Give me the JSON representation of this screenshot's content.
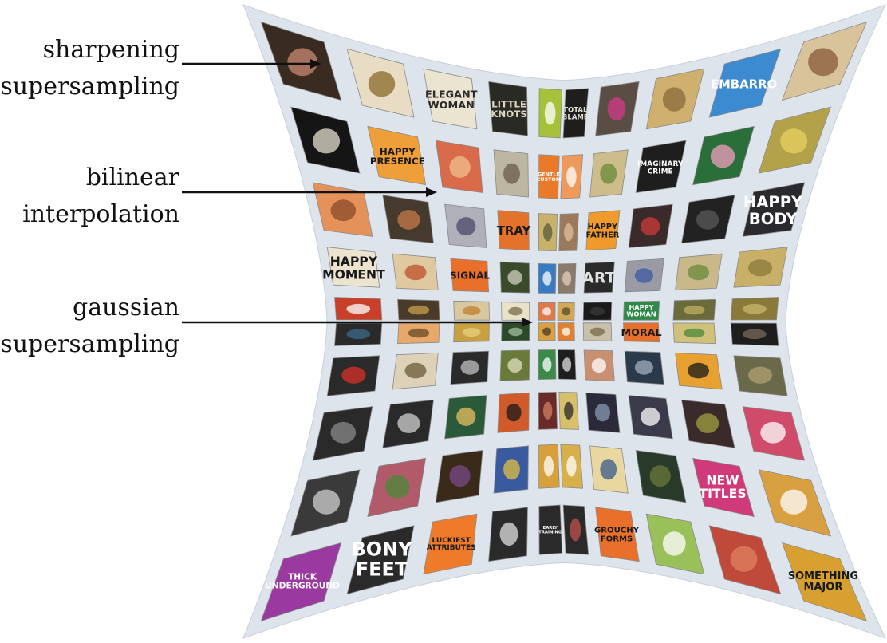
{
  "annotations": [
    {
      "line1": "sharpening",
      "line2": "supersampling"
    },
    {
      "line1": "bilinear",
      "line2": "interpolation"
    },
    {
      "line1": "gaussian",
      "line2": "supersampling"
    }
  ],
  "tiles": [
    {
      "text": "",
      "bg": "#3a2b20",
      "fg": "#c98a73"
    },
    {
      "text": "",
      "bg": "#e9dcc4",
      "fg": "#8a6a2c"
    },
    {
      "text": "ELEGANT WOMAN",
      "bg": "#ebe4d0",
      "fg": "#2a2a2a"
    },
    {
      "text": "LITTLE KNOTS",
      "bg": "#2a2a24",
      "fg": "#ded6c0"
    },
    {
      "text": "",
      "bg": "#a6c23a",
      "fg": "#ffffff"
    },
    {
      "text": "TOTAL BLAME",
      "bg": "#1e1e1c",
      "fg": "#e0e0d8"
    },
    {
      "text": "",
      "bg": "#5a4e44",
      "fg": "#d23a8a"
    },
    {
      "text": "",
      "bg": "#cfb06e",
      "fg": "#8a6a3a"
    },
    {
      "text": "EMBARRO",
      "bg": "#3c8ad0",
      "fg": "#ffffff"
    },
    {
      "text": "",
      "bg": "#d8c39a",
      "fg": "#8a5a3a"
    },
    {
      "text": "",
      "bg": "#151515",
      "fg": "#e6e0cc"
    },
    {
      "text": "HAPPY PRESENCE",
      "bg": "#ef9f3a",
      "fg": "#1a1a1a"
    },
    {
      "text": "",
      "bg": "#d96a4a",
      "fg": "#f0c090"
    },
    {
      "text": "",
      "bg": "#bdb6a2",
      "fg": "#6a5a4a"
    },
    {
      "text": "GENTLE CUSTOM",
      "bg": "#ea7a2a",
      "fg": "#ffffff"
    },
    {
      "text": "",
      "bg": "#ef9a5a",
      "fg": "#ffffff"
    },
    {
      "text": "",
      "bg": "#cdbd8a",
      "fg": "#6a8a3a"
    },
    {
      "text": "IMAGINARY CRIME",
      "bg": "#1e1e1e",
      "fg": "#ffffff"
    },
    {
      "text": "",
      "bg": "#2a6e3a",
      "fg": "#f0a0c0"
    },
    {
      "text": "",
      "bg": "#b4a24a",
      "fg": "#e8d060"
    },
    {
      "text": "",
      "bg": "#e4925a",
      "fg": "#8a4a2a"
    },
    {
      "text": "",
      "bg": "#463a2e",
      "fg": "#c87a4a"
    },
    {
      "text": "",
      "bg": "#b0b0ba",
      "fg": "#4a4a6a"
    },
    {
      "text": "TRAY",
      "bg": "#e4722a",
      "fg": "#1a1a1a"
    },
    {
      "text": "",
      "bg": "#c8b26a",
      "fg": "#5a5a3a"
    },
    {
      "text": "",
      "bg": "#9a7a5a",
      "fg": "#e0c0a0"
    },
    {
      "text": "HAPPY FATHER",
      "bg": "#ef9a2a",
      "fg": "#1a1a1a"
    },
    {
      "text": "",
      "bg": "#3a2a2a",
      "fg": "#d03a3a"
    },
    {
      "text": "",
      "bg": "#222222",
      "fg": "#5a5a5a"
    },
    {
      "text": "HAPPY BODY",
      "bg": "#2a2a2e",
      "fg": "#ffffff"
    },
    {
      "text": "HAPPY MOMENT",
      "bg": "#ece4ce",
      "fg": "#1a1a1a"
    },
    {
      "text": "",
      "bg": "#e0c8a0",
      "fg": "#c0502a"
    },
    {
      "text": "SIGNAL",
      "bg": "#e8702a",
      "fg": "#1a1a1a"
    },
    {
      "text": "",
      "bg": "#3a4a2a",
      "fg": "#d0d0c0"
    },
    {
      "text": "",
      "bg": "#3a7ac0",
      "fg": "#ffffff"
    },
    {
      "text": "",
      "bg": "#8a7a6a",
      "fg": "#e0d0c0"
    },
    {
      "text": "ART",
      "bg": "#2a2a2a",
      "fg": "#e0e0e0"
    },
    {
      "text": "",
      "bg": "#9a9aa4",
      "fg": "#3a5aa0"
    },
    {
      "text": "",
      "bg": "#c8b88a",
      "fg": "#6a8a3a"
    },
    {
      "text": "",
      "bg": "#c8b068",
      "fg": "#8a7a3a"
    },
    {
      "text": "",
      "bg": "#c8402a",
      "fg": "#ffffff"
    },
    {
      "text": "",
      "bg": "#4a3a2a",
      "fg": "#c8a04a"
    },
    {
      "text": "",
      "bg": "#d8c8a0",
      "fg": "#c0802a"
    },
    {
      "text": "",
      "bg": "#eae2c8",
      "fg": "#7a6a4a"
    },
    {
      "text": "",
      "bg": "#e07a4a",
      "fg": "#ffffff"
    },
    {
      "text": "",
      "bg": "#cfa85a",
      "fg": "#5a4a2a"
    },
    {
      "text": "",
      "bg": "#1a1a1a",
      "fg": "#3a3a3a"
    },
    {
      "text": "HAPPY WOMAN",
      "bg": "#2f8a4a",
      "fg": "#ffffff"
    },
    {
      "text": "",
      "bg": "#6a6a3a",
      "fg": "#c0b060"
    },
    {
      "text": "",
      "bg": "#8a7a3a",
      "fg": "#c8b870"
    },
    {
      "text": "",
      "bg": "#2a2a2a",
      "fg": "#3a6a8a"
    },
    {
      "text": "",
      "bg": "#e8a86a",
      "fg": "#6a4a2a"
    },
    {
      "text": "",
      "bg": "#c8a040",
      "fg": "#e8d080"
    },
    {
      "text": "",
      "bg": "#2a4a2a",
      "fg": "#a0c0a0"
    },
    {
      "text": "",
      "bg": "#d8a040",
      "fg": "#4a3a2a"
    },
    {
      "text": "",
      "bg": "#e08030",
      "fg": "#ffffff"
    },
    {
      "text": "",
      "bg": "#c8c0a8",
      "fg": "#7a6a4a"
    },
    {
      "text": "MORAL",
      "bg": "#e8702a",
      "fg": "#1a1a1a"
    },
    {
      "text": "",
      "bg": "#cfc07a",
      "fg": "#4a8a3a"
    },
    {
      "text": "",
      "bg": "#1e1e1e",
      "fg": "#7a6a5a"
    },
    {
      "text": "",
      "bg": "#2a2a2a",
      "fg": "#d8302a"
    },
    {
      "text": "",
      "bg": "#ddd2b8",
      "fg": "#6a5a3a"
    },
    {
      "text": "",
      "bg": "#2a2a2a",
      "fg": "#c0c0c0"
    },
    {
      "text": "",
      "bg": "#6a7a3a",
      "fg": "#e0e0c0"
    },
    {
      "text": "",
      "bg": "#3a8a4a",
      "fg": "#ffffff"
    },
    {
      "text": "",
      "bg": "#1e1e1e",
      "fg": "#e0e0e0"
    },
    {
      "text": "",
      "bg": "#c89070",
      "fg": "#ffffff"
    },
    {
      "text": "",
      "bg": "#2a3a4a",
      "fg": "#a0b0c0"
    },
    {
      "text": "",
      "bg": "#e8a030",
      "fg": "#1a1a1a"
    },
    {
      "text": "",
      "bg": "#6a6a4a",
      "fg": "#b0a070"
    },
    {
      "text": "",
      "bg": "#2a2a2a",
      "fg": "#8a8a8a"
    },
    {
      "text": "",
      "bg": "#2a2a2a",
      "fg": "#d0d0d0"
    },
    {
      "text": "",
      "bg": "#2a5a3a",
      "fg": "#e8c060"
    },
    {
      "text": "",
      "bg": "#d05a2a",
      "fg": "#1a1a1a"
    },
    {
      "text": "",
      "bg": "#6a2a2a",
      "fg": "#d08060"
    },
    {
      "text": "",
      "bg": "#d8c06a",
      "fg": "#2a2a2a"
    },
    {
      "text": "",
      "bg": "#2a2a3a",
      "fg": "#8a9ab0"
    },
    {
      "text": "",
      "bg": "#3a3a4a",
      "fg": "#ffffff"
    },
    {
      "text": "",
      "bg": "#3a2a2a",
      "fg": "#a0a040"
    },
    {
      "text": "",
      "bg": "#d04a6a",
      "fg": "#ffffff"
    },
    {
      "text": "",
      "bg": "#3a3a3a",
      "fg": "#d0d0d0"
    },
    {
      "text": "",
      "bg": "#b05a6a",
      "fg": "#4a8a3a"
    },
    {
      "text": "",
      "bg": "#3a2a1a",
      "fg": "#7a4a8a"
    },
    {
      "text": "",
      "bg": "#3a5aa0",
      "fg": "#e0c040"
    },
    {
      "text": "",
      "bg": "#d8a03a",
      "fg": "#ffffff"
    },
    {
      "text": "",
      "bg": "#d8b04a",
      "fg": "#ffffff"
    },
    {
      "text": "",
      "bg": "#e8d8a0",
      "fg": "#3a5a8a"
    },
    {
      "text": "",
      "bg": "#2a3a2a",
      "fg": "#6a7a3a"
    },
    {
      "text": "NEW TITLES",
      "bg": "#d03a7a",
      "fg": "#ffffff"
    },
    {
      "text": "",
      "bg": "#d8a040",
      "fg": "#ffffff"
    },
    {
      "text": "THICK UNDERGROUND",
      "bg": "#9a3aa0",
      "fg": "#ffffff"
    },
    {
      "text": "BONY FEET",
      "bg": "#2a2a2a",
      "fg": "#ffffff"
    },
    {
      "text": "LUCKIEST ATTRIBUTES",
      "bg": "#ef7a2a",
      "fg": "#1a1a1a"
    },
    {
      "text": "",
      "bg": "#2a2a2a",
      "fg": "#e0e0e0"
    },
    {
      "text": "EARLY TRAINING",
      "bg": "#2a2a2a",
      "fg": "#ffffff"
    },
    {
      "text": "",
      "bg": "#2a2a2a",
      "fg": "#c0504a"
    },
    {
      "text": "GROUCHY FORMS",
      "bg": "#e8702a",
      "fg": "#1a1a1a"
    },
    {
      "text": "",
      "bg": "#9ac05a",
      "fg": "#ffffff"
    },
    {
      "text": "",
      "bg": "#c04a3a",
      "fg": "#e08060"
    },
    {
      "text": "SOMETHING MAJOR",
      "bg": "#d8a030",
      "fg": "#1a1a1a"
    }
  ]
}
